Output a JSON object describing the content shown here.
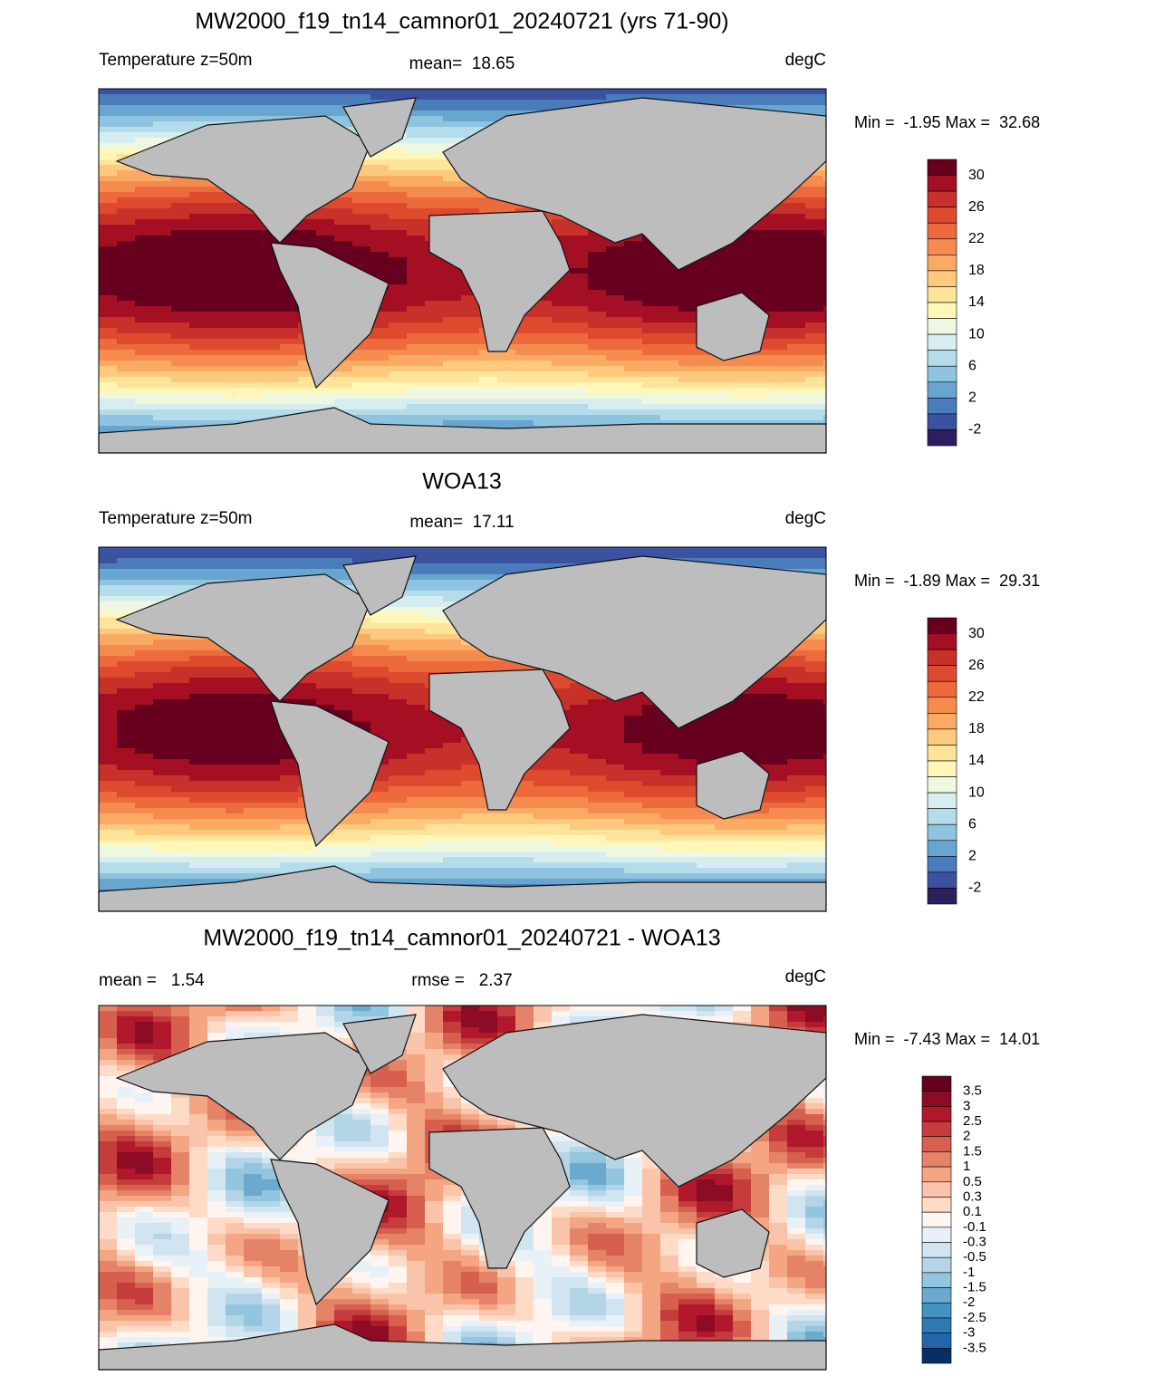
{
  "panels": [
    {
      "title": "MW2000_f19_tn14_camnor01_20240721 (yrs 71-90)",
      "left": "Temperature z=50m",
      "center": "mean=  18.65",
      "right": "degC",
      "range": "Min =  -1.95 Max =  32.68",
      "colorbar": {
        "colors": [
          "#67001f",
          "#a50f24",
          "#c8302a",
          "#dd4a2e",
          "#ec6a3c",
          "#f58b4e",
          "#fbaa63",
          "#fdc97c",
          "#fee49a",
          "#fff6b8",
          "#eef8e0",
          "#d6eef0",
          "#b4dcea",
          "#8ec4df",
          "#68a6cf",
          "#4a7cbb",
          "#3a52a0",
          "#2d1e5e"
        ],
        "labels": [
          "30",
          "26",
          "22",
          "18",
          "14",
          "10",
          "6",
          "2",
          "-2"
        ]
      }
    },
    {
      "title": "WOA13",
      "left": "Temperature z=50m",
      "center": "mean=  17.11",
      "right": "degC",
      "range": "Min =  -1.89 Max =  29.31",
      "colorbar": {
        "colors": [
          "#67001f",
          "#a50f24",
          "#c8302a",
          "#dd4a2e",
          "#ec6a3c",
          "#f58b4e",
          "#fbaa63",
          "#fdc97c",
          "#fee49a",
          "#fff6b8",
          "#eef8e0",
          "#d6eef0",
          "#b4dcea",
          "#8ec4df",
          "#68a6cf",
          "#4a7cbb",
          "#3a52a0",
          "#2d1e5e"
        ],
        "labels": [
          "30",
          "26",
          "22",
          "18",
          "14",
          "10",
          "6",
          "2",
          "-2"
        ]
      }
    },
    {
      "title": "MW2000_f19_tn14_camnor01_20240721 - WOA13",
      "left": "mean =   1.54",
      "center": "rmse =   2.37",
      "right": "degC",
      "range": "Min =  -7.43 Max =  14.01",
      "colorbar": {
        "colors": [
          "#67001f",
          "#8d0c25",
          "#b2182b",
          "#c43c3c",
          "#d6604d",
          "#e58368",
          "#f4a582",
          "#f9c4a9",
          "#fddbc7",
          "#fff5f0",
          "#e8f1f7",
          "#d1e5f0",
          "#b4d5e8",
          "#92c5de",
          "#6aaacf",
          "#4393c3",
          "#3079b5",
          "#2166ac",
          "#053061"
        ],
        "labels": [
          "3.5",
          "3",
          "2.5",
          "2",
          "1.5",
          "1",
          "0.5",
          "0.3",
          "0.1",
          "-0.1",
          "-0.3",
          "-0.5",
          "-1",
          "-1.5",
          "-2",
          "-2.5",
          "-3",
          "-3.5"
        ]
      }
    }
  ]
}
